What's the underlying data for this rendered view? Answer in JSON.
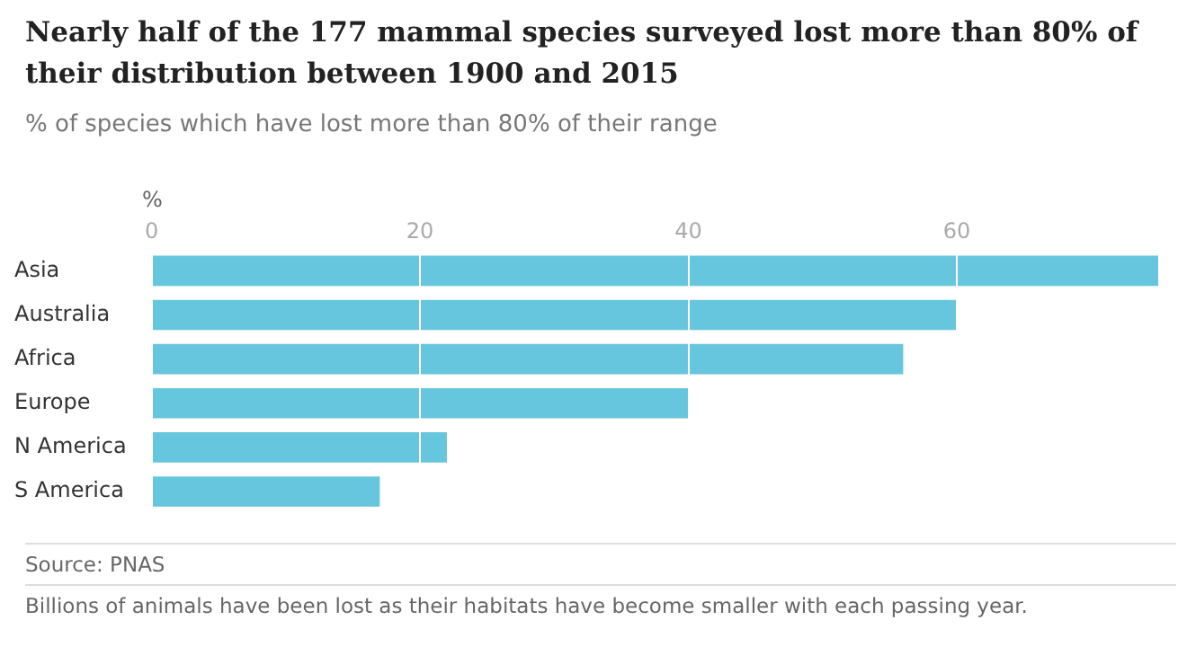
{
  "chart_data": {
    "type": "bar",
    "orientation": "horizontal",
    "title": "Nearly half of the 177 mammal species surveyed lost more than 80% of their distribution between 1900 and 2015",
    "subtitle": "% of species which have lost more than 80% of their range",
    "xlabel": "%",
    "categories": [
      "Asia",
      "Australia",
      "Africa",
      "Europe",
      "N America",
      "S America"
    ],
    "values": [
      75,
      60,
      56,
      40,
      22,
      17
    ],
    "color": "#66c6dd",
    "xlim": [
      0,
      75
    ],
    "xticks": [
      0,
      20,
      40,
      60
    ],
    "grid": "x",
    "legend": false,
    "annotations": [
      "Source: PNAS",
      "Billions of animals have been lost as their habitats have become smaller with each passing year."
    ]
  }
}
